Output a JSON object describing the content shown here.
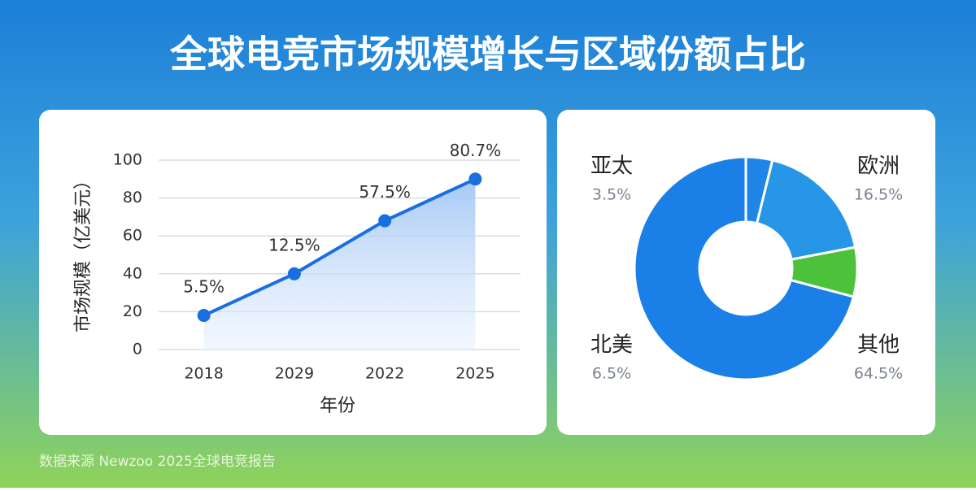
{
  "header": {
    "title": "全球电竞市场规模增长与区域份额占比"
  },
  "source": "数据来源 Newzoo 2025全球电竞报告",
  "chart_data": [
    {
      "type": "line",
      "categories": [
        "2018",
        "2029",
        "2022",
        "2025"
      ],
      "values": [
        18,
        40,
        68,
        90
      ],
      "point_labels": [
        "5.5%",
        "12.5%",
        "57.5%",
        "80.7%"
      ],
      "color": "#1a6fe0",
      "ylabel": "市场规模（亿美元）",
      "xlabel": "年份",
      "ylim": [
        0,
        100
      ],
      "yticks": [
        0,
        20,
        40,
        60,
        80,
        100
      ],
      "grid": true
    },
    {
      "type": "donut",
      "categories": [
        "亚太",
        "欧洲",
        "北美",
        "其他"
      ],
      "values": [
        3.5,
        16.5,
        6.5,
        64.5
      ],
      "value_labels": [
        "3.5%",
        "16.5%",
        "6.5%",
        "64.5%"
      ],
      "colors": [
        "#1f86e8",
        "#2796e6",
        "#4cc13a",
        "#1a7fe6"
      ]
    }
  ]
}
